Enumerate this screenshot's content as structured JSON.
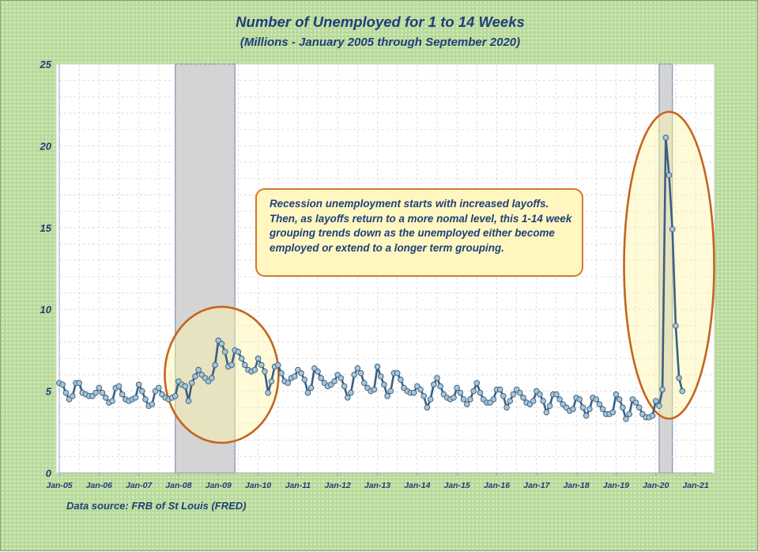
{
  "chart_data": {
    "type": "line",
    "title": "Number of Unemployed for 1 to 14 Weeks",
    "subtitle": "(Millions - January 2005 through September 2020)",
    "source": "Data source: FRB of St Louis (FRED)",
    "annotation": "Recession unemployment starts with increased layoffs. Then, as layoffs return to a more nomal level, this 1-14 week grouping trends down as the unemployed either become employed or extend to a longer term grouping.",
    "x_ticks": [
      "Jan-05",
      "Jan-06",
      "Jan-07",
      "Jan-08",
      "Jan-09",
      "Jan-10",
      "Jan-11",
      "Jan-12",
      "Jan-13",
      "Jan-14",
      "Jan-15",
      "Jan-16",
      "Jan-17",
      "Jan-18",
      "Jan-19",
      "Jan-20",
      "Jan-21"
    ],
    "y_ticks": [
      "0",
      "5",
      "10",
      "15",
      "20",
      "25"
    ],
    "ylim": [
      0,
      25
    ],
    "xlim": [
      "2005-01",
      "2021-06"
    ],
    "grid": true,
    "recessions": [
      {
        "start": "2007-12",
        "end": "2009-06"
      },
      {
        "start": "2020-02",
        "end": "2020-06"
      }
    ],
    "highlights": [
      {
        "center": "2009-02",
        "value_center": 6.0,
        "color": "#c5641f"
      },
      {
        "center": "2020-05",
        "value_center": 12.7,
        "color": "#c5641f"
      }
    ],
    "series": [
      {
        "start": "2005-01",
        "color": "#3a5f86",
        "values": [
          5.5,
          5.4,
          4.9,
          4.5,
          4.7,
          5.5,
          5.5,
          4.9,
          4.8,
          4.7,
          4.7,
          4.9,
          5.2,
          4.9,
          4.6,
          4.3,
          4.4,
          5.2,
          5.3,
          4.8,
          4.5,
          4.4,
          4.5,
          4.6,
          5.4,
          5.0,
          4.5,
          4.1,
          4.2,
          5.0,
          5.2,
          4.8,
          4.6,
          4.5,
          4.6,
          4.7,
          5.6,
          5.4,
          5.3,
          4.4,
          5.5,
          5.9,
          6.3,
          6.0,
          5.8,
          5.6,
          5.8,
          6.6,
          8.1,
          7.9,
          7.4,
          6.5,
          6.6,
          7.5,
          7.4,
          7.0,
          6.6,
          6.3,
          6.2,
          6.3,
          7.0,
          6.6,
          6.2,
          4.9,
          5.6,
          6.5,
          6.6,
          6.1,
          5.6,
          5.5,
          5.8,
          5.9,
          6.3,
          6.1,
          5.7,
          4.9,
          5.2,
          6.4,
          6.2,
          5.8,
          5.5,
          5.3,
          5.4,
          5.6,
          6.0,
          5.8,
          5.3,
          4.6,
          4.9,
          6.0,
          6.4,
          6.1,
          5.5,
          5.2,
          5.0,
          5.1,
          6.5,
          5.9,
          5.4,
          4.7,
          5.0,
          6.1,
          6.1,
          5.7,
          5.2,
          5.0,
          4.9,
          4.9,
          5.3,
          5.1,
          4.7,
          4.0,
          4.5,
          5.4,
          5.8,
          5.3,
          4.8,
          4.6,
          4.5,
          4.6,
          5.2,
          4.9,
          4.5,
          4.2,
          4.5,
          5.0,
          5.5,
          4.9,
          4.5,
          4.3,
          4.3,
          4.5,
          5.1,
          5.1,
          4.7,
          4.0,
          4.4,
          4.8,
          5.1,
          4.9,
          4.6,
          4.3,
          4.2,
          4.4,
          5.0,
          4.8,
          4.4,
          3.7,
          4.1,
          4.8,
          4.8,
          4.5,
          4.2,
          4.0,
          3.8,
          3.9,
          4.6,
          4.5,
          4.0,
          3.5,
          3.9,
          4.6,
          4.5,
          4.2,
          3.9,
          3.6,
          3.6,
          3.7,
          4.8,
          4.5,
          4.0,
          3.3,
          3.6,
          4.5,
          4.3,
          4.0,
          3.6,
          3.4,
          3.4,
          3.5,
          4.4,
          4.1,
          5.1,
          20.5,
          18.2,
          14.9,
          9.0,
          5.8,
          5.0
        ]
      }
    ]
  }
}
